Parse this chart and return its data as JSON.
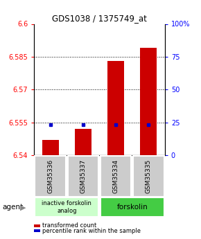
{
  "title": "GDS1038 / 1375749_at",
  "samples": [
    "GSM35336",
    "GSM35337",
    "GSM35334",
    "GSM35335"
  ],
  "bar_values": [
    6.547,
    6.552,
    6.583,
    6.589
  ],
  "percentile_values": [
    6.554,
    6.554,
    6.554,
    6.554
  ],
  "ylim": [
    6.54,
    6.6
  ],
  "yticks_left": [
    6.54,
    6.555,
    6.57,
    6.585,
    6.6
  ],
  "ytick_left_labels": [
    "6.54",
    "6.555",
    "6.57",
    "6.585",
    "6.6"
  ],
  "yticks_right_pct": [
    0,
    25,
    50,
    75,
    100
  ],
  "ytick_right_labels": [
    "0",
    "25",
    "50",
    "75",
    "100%"
  ],
  "bar_color": "#cc0000",
  "percentile_color": "#0000cc",
  "grid_lines": [
    6.555,
    6.57,
    6.585
  ],
  "agent_label": "agent",
  "group1_label": "inactive forskolin\nanalog",
  "group2_label": "forskolin",
  "group1_indices": [
    0,
    1
  ],
  "group2_indices": [
    2,
    3
  ],
  "group1_color": "#ccffcc",
  "group2_color": "#44cc44",
  "legend_items": [
    {
      "color": "#cc0000",
      "label": "transformed count"
    },
    {
      "color": "#0000cc",
      "label": "percentile rank within the sample"
    }
  ],
  "bar_width": 0.5,
  "base_value": 6.54,
  "sample_box_color": "#cccccc",
  "bg_color": "#ffffff"
}
